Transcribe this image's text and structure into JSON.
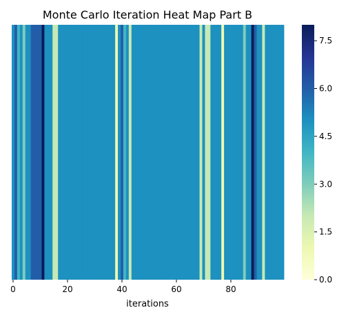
{
  "chart_data": {
    "type": "heatmap",
    "title": "Monte Carlo Iteration Heat Map Part B",
    "xlabel": "iterations",
    "ylabel": "",
    "colormap": "YlGnBu",
    "colorbar": {
      "min": 0.0,
      "max": 8.0,
      "ticks": [
        0.0,
        1.5,
        3.0,
        4.5,
        6.0,
        7.5
      ],
      "tick_labels": [
        "0.0",
        "1.5",
        "3.0",
        "4.5",
        "6.0",
        "7.5"
      ]
    },
    "x_ticks": [
      0,
      20,
      40,
      60,
      80
    ],
    "x_tick_labels": [
      "0",
      "20",
      "40",
      "60",
      "80"
    ],
    "x_range": [
      0,
      99
    ],
    "values": [
      5,
      6,
      4,
      5,
      3,
      5,
      5,
      6,
      6,
      6,
      6,
      8,
      5,
      5,
      5,
      2,
      2,
      5,
      5,
      5,
      5,
      5,
      5,
      5,
      5,
      5,
      5,
      5,
      5,
      5,
      5,
      5,
      5,
      5,
      5,
      5,
      5,
      5,
      1,
      5,
      6,
      4,
      5,
      2,
      5,
      5,
      5,
      5,
      5,
      5,
      5,
      5,
      5,
      5,
      5,
      5,
      5,
      5,
      5,
      5,
      5,
      5,
      5,
      5,
      5,
      5,
      5,
      5,
      5,
      2,
      5,
      2,
      2,
      5,
      5,
      5,
      5,
      1,
      5,
      5,
      5,
      5,
      5,
      5,
      5,
      3,
      5,
      5,
      8,
      6,
      5,
      5,
      2,
      5,
      5,
      5,
      5,
      5,
      5,
      5
    ]
  }
}
